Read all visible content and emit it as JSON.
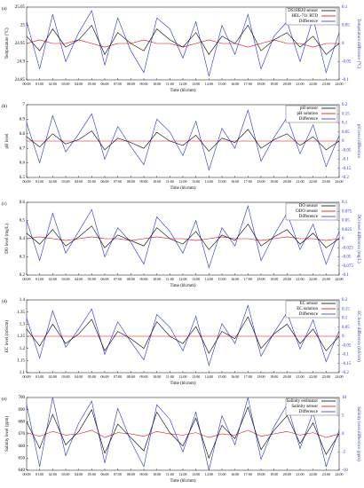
{
  "chart_data": [
    {
      "type": "line",
      "panel_label": "(a)",
      "xlabel": "Time (hh:mm)",
      "ylabel": "Temperature (°C)",
      "y2label": "Temperature difference (°C)",
      "x": [
        "00:00",
        "01:00",
        "02:00",
        "03:00",
        "04:00",
        "05:00",
        "06:00",
        "07:00",
        "08:00",
        "09:00",
        "10:00",
        "11:00",
        "12:00",
        "13:00",
        "14:00",
        "15:00",
        "16:00",
        "17:00",
        "18:00",
        "19:00",
        "20:00",
        "21:00",
        "22:00",
        "23:00",
        "24:00"
      ],
      "ylim": [
        24.85,
        25.05
      ],
      "yticks": [
        24.85,
        24.9,
        24.95,
        25,
        25.05
      ],
      "y2lim": [
        -0.1,
        0.1
      ],
      "y2ticks": [
        -0.1,
        -0.05,
        0,
        0.05,
        0.1
      ],
      "legend": "upper right",
      "series": [
        {
          "name": "DS18B20 sensor",
          "color": "#000000",
          "values": [
            24.97,
            24.93,
            24.99,
            24.94,
            24.96,
            25.0,
            24.92,
            24.98,
            24.95,
            24.93,
            24.99,
            24.96,
            24.94,
            24.98,
            24.92,
            24.97,
            24.95,
            25.0,
            24.93,
            24.96,
            24.98,
            24.94,
            24.97,
            24.92,
            24.95
          ]
        },
        {
          "name": "HEL-711 RTD",
          "color": "#e00000",
          "values": [
            24.95,
            24.96,
            24.95,
            24.95,
            24.96,
            24.95,
            24.94,
            24.95,
            24.95,
            24.96,
            24.95,
            24.95,
            24.94,
            24.95,
            24.96,
            24.95,
            24.95,
            24.94,
            24.95,
            24.96,
            24.95,
            24.95,
            24.94,
            24.95,
            24.95
          ]
        },
        {
          "name": "Difference",
          "color": "#2233cc",
          "axis": "y2",
          "values": [
            0.06,
            -0.07,
            0.08,
            -0.05,
            0.03,
            0.09,
            -0.06,
            0.07,
            -0.02,
            -0.08,
            0.07,
            0.04,
            -0.04,
            0.06,
            -0.09,
            0.05,
            -0.03,
            0.08,
            -0.07,
            0.02,
            0.06,
            -0.05,
            0.07,
            -0.08,
            0.03
          ]
        }
      ]
    },
    {
      "type": "line",
      "panel_label": "(b)",
      "xlabel": "Time (hh:mm)",
      "ylabel": "pH level",
      "y2label": "pH level difference",
      "x": [
        "00:00",
        "01:00",
        "02:00",
        "03:00",
        "04:00",
        "05:00",
        "06:00",
        "07:00",
        "08:00",
        "09:00",
        "10:00",
        "11:00",
        "12:00",
        "13:00",
        "14:00",
        "15:00",
        "16:00",
        "17:00",
        "18:00",
        "19:00",
        "20:00",
        "21:00",
        "22:00",
        "23:00",
        "24:00"
      ],
      "ylim": [
        6.5,
        7
      ],
      "yticks": [
        6.5,
        6.6,
        6.7,
        6.8,
        6.9,
        7
      ],
      "y2lim": [
        -0.2,
        0.2
      ],
      "y2ticks": [
        -0.2,
        -0.15,
        -0.1,
        -0.05,
        0,
        0.05,
        0.1,
        0.15,
        0.2
      ],
      "legend": "upper right",
      "series": [
        {
          "name": "pH sensor",
          "color": "#000000",
          "values": [
            6.78,
            6.71,
            6.8,
            6.73,
            6.76,
            6.82,
            6.69,
            6.77,
            6.74,
            6.7,
            6.81,
            6.75,
            6.72,
            6.79,
            6.68,
            6.77,
            6.74,
            6.83,
            6.7,
            6.76,
            6.8,
            6.72,
            6.78,
            6.69,
            6.75
          ]
        },
        {
          "name": "pH solution",
          "color": "#e00000",
          "values": [
            6.75,
            6.75,
            6.75,
            6.75,
            6.75,
            6.75,
            6.75,
            6.75,
            6.75,
            6.75,
            6.75,
            6.75,
            6.75,
            6.75,
            6.75,
            6.75,
            6.75,
            6.75,
            6.75,
            6.75,
            6.75,
            6.75,
            6.75,
            6.75,
            6.75
          ]
        },
        {
          "name": "Difference",
          "color": "#2233cc",
          "axis": "y2",
          "values": [
            0.1,
            -0.12,
            0.14,
            -0.06,
            0.04,
            0.15,
            -0.1,
            0.08,
            -0.03,
            -0.13,
            0.12,
            0.05,
            -0.08,
            0.11,
            -0.16,
            0.07,
            -0.04,
            0.17,
            -0.11,
            0.02,
            0.13,
            -0.07,
            0.09,
            -0.14,
            0.03
          ]
        }
      ]
    },
    {
      "type": "line",
      "panel_label": "(c)",
      "xlabel": "Time (hh:mm)",
      "ylabel": "DO level (mg/L)",
      "y2label": "DO level difference (mg/L)",
      "x": [
        "00:00",
        "01:00",
        "02:00",
        "03:00",
        "04:00",
        "05:00",
        "06:00",
        "07:00",
        "08:00",
        "09:00",
        "10:00",
        "11:00",
        "12:00",
        "13:00",
        "14:00",
        "15:00",
        "16:00",
        "17:00",
        "18:00",
        "19:00",
        "20:00",
        "21:00",
        "22:00",
        "23:00",
        "24:00"
      ],
      "ylim": [
        6.2,
        6.6
      ],
      "yticks": [
        6.2,
        6.3,
        6.4,
        6.5,
        6.6
      ],
      "y2lim": [
        -0.1,
        0.1
      ],
      "y2ticks": [
        -0.1,
        -0.075,
        -0.05,
        -0.025,
        0,
        0.025,
        0.05,
        0.075,
        0.1
      ],
      "legend": "upper right",
      "series": [
        {
          "name": "DO sensor",
          "color": "#000000",
          "values": [
            6.43,
            6.37,
            6.45,
            6.36,
            6.41,
            6.47,
            6.35,
            6.42,
            6.39,
            6.36,
            6.46,
            6.4,
            6.37,
            6.44,
            6.34,
            6.42,
            6.39,
            6.48,
            6.36,
            6.41,
            6.45,
            6.37,
            6.43,
            6.35,
            6.4
          ]
        },
        {
          "name": "ODO sensor",
          "color": "#e00000",
          "values": [
            6.4,
            6.41,
            6.4,
            6.39,
            6.4,
            6.41,
            6.4,
            6.4,
            6.39,
            6.4,
            6.41,
            6.4,
            6.4,
            6.39,
            6.4,
            6.41,
            6.4,
            6.4,
            6.39,
            6.4,
            6.41,
            6.4,
            6.4,
            6.39,
            6.4
          ]
        },
        {
          "name": "Difference",
          "color": "#2233cc",
          "axis": "y2",
          "values": [
            0.05,
            -0.06,
            0.07,
            -0.04,
            0.02,
            0.08,
            -0.05,
            0.03,
            -0.01,
            -0.07,
            0.06,
            0.02,
            -0.04,
            0.05,
            -0.08,
            0.03,
            -0.02,
            0.09,
            -0.06,
            0.01,
            0.07,
            -0.03,
            0.04,
            -0.07,
            0.02
          ]
        }
      ]
    },
    {
      "type": "line",
      "panel_label": "(d)",
      "xlabel": "Time (hh:mm)",
      "ylabel": "EC level (mS/cm)",
      "y2label": "EC level difference (mS/cm)",
      "x": [
        "00:00",
        "01:00",
        "02:00",
        "03:00",
        "04:00",
        "05:00",
        "06:00",
        "07:00",
        "08:00",
        "09:00",
        "10:00",
        "11:00",
        "12:00",
        "13:00",
        "14:00",
        "15:00",
        "16:00",
        "17:00",
        "18:00",
        "19:00",
        "20:00",
        "21:00",
        "22:00",
        "23:00",
        "24:00"
      ],
      "ylim": [
        1.1,
        1.4
      ],
      "yticks": [
        1.1,
        1.15,
        1.2,
        1.25,
        1.3,
        1.35,
        1.4
      ],
      "y2lim": [
        -0.2,
        0.2
      ],
      "y2ticks": [
        -0.2,
        -0.15,
        -0.1,
        -0.05,
        0,
        0.05,
        0.1,
        0.15,
        0.2
      ],
      "legend": "upper right",
      "series": [
        {
          "name": "EC sensor",
          "color": "#000000",
          "values": [
            1.28,
            1.21,
            1.3,
            1.22,
            1.26,
            1.32,
            1.19,
            1.27,
            1.24,
            1.2,
            1.31,
            1.25,
            1.22,
            1.29,
            1.18,
            1.27,
            1.24,
            1.33,
            1.2,
            1.26,
            1.3,
            1.22,
            1.28,
            1.19,
            1.25
          ]
        },
        {
          "name": "EC solution",
          "color": "#e00000",
          "values": [
            1.25,
            1.25,
            1.25,
            1.25,
            1.25,
            1.25,
            1.25,
            1.25,
            1.25,
            1.25,
            1.25,
            1.25,
            1.25,
            1.25,
            1.25,
            1.25,
            1.25,
            1.25,
            1.25,
            1.25,
            1.25,
            1.25,
            1.25,
            1.25,
            1.25
          ]
        },
        {
          "name": "Difference",
          "color": "#2233cc",
          "axis": "y2",
          "values": [
            0.1,
            -0.12,
            0.14,
            -0.06,
            0.04,
            0.15,
            -0.1,
            0.08,
            -0.03,
            -0.13,
            0.12,
            0.05,
            -0.08,
            0.11,
            -0.16,
            0.07,
            -0.04,
            0.17,
            -0.11,
            0.02,
            0.13,
            -0.07,
            0.09,
            -0.14,
            0.03
          ]
        }
      ]
    },
    {
      "type": "line",
      "panel_label": "(e)",
      "xlabel": "Time (hh:mm)",
      "ylabel": "Salinity level (ppm)",
      "y2label": "Salinity level difference (ppm)",
      "x": [
        "00:00",
        "01:00",
        "02:00",
        "03:00",
        "04:00",
        "05:00",
        "06:00",
        "07:00",
        "08:00",
        "09:00",
        "10:00",
        "11:00",
        "12:00",
        "13:00",
        "14:00",
        "15:00",
        "16:00",
        "17:00",
        "18:00",
        "19:00",
        "20:00",
        "21:00",
        "22:00",
        "23:00",
        "24:00"
      ],
      "ylim": [
        640,
        700
      ],
      "yticks": [
        640,
        650,
        660,
        670,
        680,
        690,
        700
      ],
      "y2lim": [
        -10,
        10
      ],
      "y2ticks": [
        -10,
        -5,
        0,
        5,
        10
      ],
      "legend": "upper right",
      "series": [
        {
          "name": "Salinity estimator",
          "color": "#000000",
          "values": [
            680,
            658,
            686,
            661,
            672,
            690,
            654,
            678,
            667,
            656,
            688,
            671,
            660,
            683,
            650,
            677,
            666,
            692,
            657,
            673,
            685,
            662,
            679,
            653,
            670
          ]
        },
        {
          "name": "Salinity sensor",
          "color": "#e00000",
          "values": [
            671,
            668,
            672,
            669,
            670,
            673,
            667,
            671,
            670,
            668,
            672,
            670,
            669,
            671,
            667,
            670,
            669,
            673,
            668,
            670,
            672,
            669,
            671,
            667,
            670
          ]
        },
        {
          "name": "Difference",
          "color": "#2233cc",
          "axis": "y2",
          "values": [
            8,
            -9,
            10,
            -6,
            3,
            9,
            -8,
            7,
            -2,
            -9,
            8,
            4,
            -5,
            6,
            -10,
            5,
            -3,
            10,
            -7,
            2,
            8,
            -4,
            6,
            -9,
            1
          ]
        }
      ]
    }
  ]
}
